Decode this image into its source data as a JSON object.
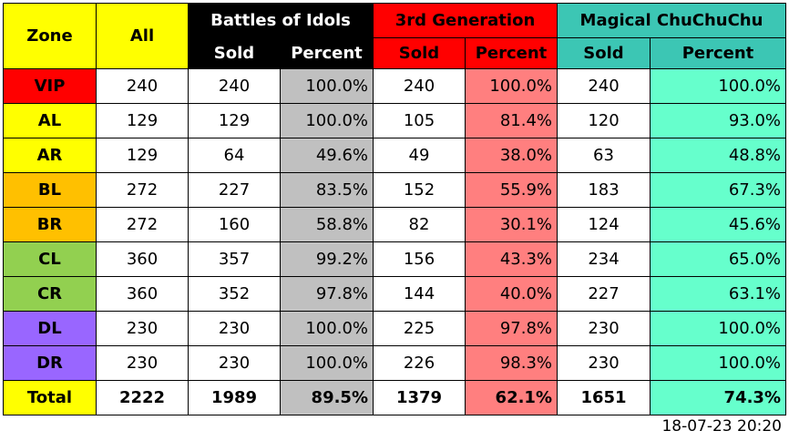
{
  "headers": {
    "zone": "Zone",
    "all": "All",
    "groups": [
      {
        "name": "Battles of Idols",
        "color": "#000000"
      },
      {
        "name": "3rd Generation",
        "color": "#ff0000"
      },
      {
        "name": "Magical ChuChuChu",
        "color": "#3cc6b4"
      }
    ],
    "sold": "Sold",
    "percent": "Percent"
  },
  "zone_colors": {
    "VIP": "#ff0000",
    "AL": "#ffff00",
    "AR": "#ffff00",
    "BL": "#ffc000",
    "BR": "#ffc000",
    "CL": "#92d050",
    "CR": "#92d050",
    "DL": "#9966ff",
    "DR": "#9966ff",
    "Total": "#ffff00"
  },
  "rows": [
    {
      "zone": "VIP",
      "all": "240",
      "b_sold": "240",
      "b_pct": "100.0%",
      "g_sold": "240",
      "g_pct": "100.0%",
      "m_sold": "240",
      "m_pct": "100.0%"
    },
    {
      "zone": "AL",
      "all": "129",
      "b_sold": "129",
      "b_pct": "100.0%",
      "g_sold": "105",
      "g_pct": "81.4%",
      "m_sold": "120",
      "m_pct": "93.0%"
    },
    {
      "zone": "AR",
      "all": "129",
      "b_sold": "64",
      "b_pct": "49.6%",
      "g_sold": "49",
      "g_pct": "38.0%",
      "m_sold": "63",
      "m_pct": "48.8%"
    },
    {
      "zone": "BL",
      "all": "272",
      "b_sold": "227",
      "b_pct": "83.5%",
      "g_sold": "152",
      "g_pct": "55.9%",
      "m_sold": "183",
      "m_pct": "67.3%"
    },
    {
      "zone": "BR",
      "all": "272",
      "b_sold": "160",
      "b_pct": "58.8%",
      "g_sold": "82",
      "g_pct": "30.1%",
      "m_sold": "124",
      "m_pct": "45.6%"
    },
    {
      "zone": "CL",
      "all": "360",
      "b_sold": "357",
      "b_pct": "99.2%",
      "g_sold": "156",
      "g_pct": "43.3%",
      "m_sold": "234",
      "m_pct": "65.0%"
    },
    {
      "zone": "CR",
      "all": "360",
      "b_sold": "352",
      "b_pct": "97.8%",
      "g_sold": "144",
      "g_pct": "40.0%",
      "m_sold": "227",
      "m_pct": "63.1%"
    },
    {
      "zone": "DL",
      "all": "230",
      "b_sold": "230",
      "b_pct": "100.0%",
      "g_sold": "225",
      "g_pct": "97.8%",
      "m_sold": "230",
      "m_pct": "100.0%"
    },
    {
      "zone": "DR",
      "all": "230",
      "b_sold": "230",
      "b_pct": "100.0%",
      "g_sold": "226",
      "g_pct": "98.3%",
      "m_sold": "230",
      "m_pct": "100.0%"
    }
  ],
  "total": {
    "zone": "Total",
    "all": "2222",
    "b_sold": "1989",
    "b_pct": "89.5%",
    "g_sold": "1379",
    "g_pct": "62.1%",
    "m_sold": "1651",
    "m_pct": "74.3%"
  },
  "timestamp": "18-07-23 20:20"
}
